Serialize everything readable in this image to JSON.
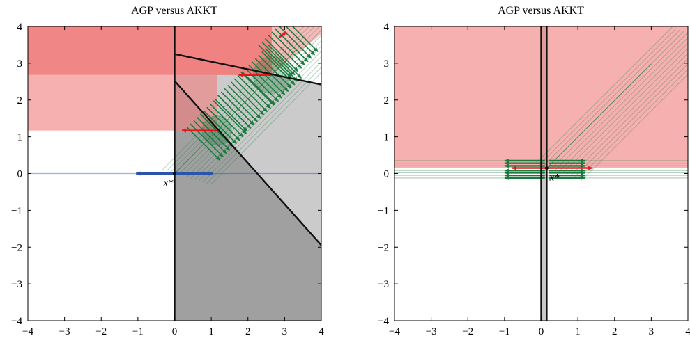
{
  "chart_data": [
    {
      "type": "scatter",
      "title": "AGP versus AKKT",
      "xlim": [
        -4,
        4
      ],
      "ylim": [
        -4,
        4
      ],
      "x_ticks": [
        "−4",
        "−3",
        "−2",
        "−1",
        "0",
        "1",
        "2",
        "3",
        "4"
      ],
      "y_ticks": [
        "−4",
        "−3",
        "−2",
        "−1",
        "0",
        "1",
        "2",
        "3",
        "4"
      ],
      "point_label": "x*",
      "point": [
        0,
        0
      ],
      "colors": {
        "red_region": "#f08080",
        "gray_region": "#a0a0a0",
        "green": "#1a7a3c",
        "red": "#e8141b",
        "blue": "#2a55a8"
      },
      "boundaries": [
        {
          "x": [
            0,
            0
          ],
          "y": [
            -4,
            4
          ]
        },
        {
          "x": [
            0,
            4
          ],
          "y": [
            3.25,
            2.42
          ]
        },
        {
          "x": [
            0,
            4
          ],
          "y": [
            2.52,
            -1.95
          ]
        }
      ],
      "red_regions": [
        {
          "x": [
            -4,
            0
          ],
          "y": [
            2.68,
            4
          ],
          "shade": "dark"
        },
        {
          "x": [
            -4,
            0
          ],
          "y": [
            1.17,
            2.68
          ],
          "shade": "light"
        },
        {
          "x": [
            0,
            2.65
          ],
          "y": [
            2.68,
            4
          ],
          "shade": "dark"
        },
        {
          "x": [
            0,
            1.15
          ],
          "y": [
            1.17,
            2.68
          ],
          "shade": "light"
        }
      ],
      "path": {
        "x": [
          0,
          1.15,
          2.65,
          3.3
        ],
        "y": [
          0,
          1.17,
          2.68,
          3.35
        ]
      },
      "circles": [
        {
          "x": 1.15,
          "y": 1.17,
          "r": 0.4
        },
        {
          "x": 2.65,
          "y": 2.68,
          "r": 0.5
        }
      ],
      "arrows_red": [
        {
          "x": [
            1.15,
            0.2
          ],
          "y": [
            1.17,
            1.17
          ]
        },
        {
          "x": [
            2.65,
            1.75
          ],
          "y": [
            2.68,
            2.68
          ]
        },
        {
          "x": [
            2.85,
            3.05
          ],
          "y": [
            3.7,
            3.85
          ]
        }
      ],
      "arrows_blue": [
        {
          "x": [
            0,
            -1.05
          ],
          "y": [
            0,
            0
          ]
        },
        {
          "x": [
            0,
            1.05
          ],
          "y": [
            0,
            0
          ]
        }
      ]
    },
    {
      "type": "scatter",
      "title": "AGP versus AKKT",
      "xlim": [
        -4,
        4
      ],
      "ylim": [
        -4,
        4
      ],
      "x_ticks": [
        "−4",
        "−3",
        "−2",
        "−1",
        "0",
        "1",
        "2",
        "3",
        "4"
      ],
      "y_ticks": [
        "−4",
        "−3",
        "−2",
        "−1",
        "0",
        "1",
        "2",
        "3",
        "4"
      ],
      "point_label": "x*",
      "point": [
        0.15,
        0.15
      ],
      "colors": {
        "red_region": "#f08080",
        "gray_region": "#c8c8c8",
        "green": "#1a7a3c",
        "red": "#e8141b"
      },
      "boundaries": [
        {
          "x": [
            0,
            0
          ],
          "y": [
            -4,
            4
          ]
        },
        {
          "x": [
            0.15,
            0.15
          ],
          "y": [
            -4,
            4
          ]
        }
      ],
      "red_regions": [
        {
          "x": [
            -4,
            4
          ],
          "y": [
            0.15,
            4
          ],
          "shade": "light"
        }
      ],
      "path": {
        "x": [
          0.15,
          3.0
        ],
        "y": [
          0.15,
          2.98
        ]
      },
      "arrows_red": [
        {
          "x": [
            0.15,
            -0.8
          ],
          "y": [
            0.15,
            0.15
          ]
        },
        {
          "x": [
            0.15,
            1.4
          ],
          "y": [
            0.15,
            0.15
          ]
        }
      ],
      "green_line_levels": [
        0.35,
        0.28,
        0.21,
        0.08,
        0.02,
        -0.05,
        -0.12
      ]
    }
  ]
}
